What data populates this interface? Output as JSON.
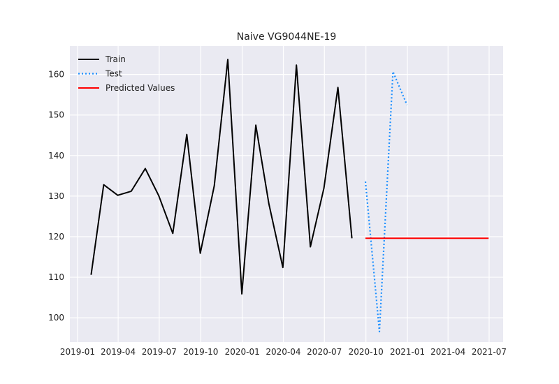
{
  "chart_data": {
    "type": "line",
    "title": "Naive VG9044NE-19",
    "xlabel": "",
    "ylabel": "",
    "x_axis_type": "date",
    "xlim": [
      "2018-12-15",
      "2021-08-01"
    ],
    "ylim": [
      94,
      167
    ],
    "grid": true,
    "legend_position": "top-left",
    "x_ticks": [
      {
        "date": "2019-01-01",
        "label": "2019-01"
      },
      {
        "date": "2019-04-01",
        "label": "2019-04"
      },
      {
        "date": "2019-07-01",
        "label": "2019-07"
      },
      {
        "date": "2019-10-01",
        "label": "2019-10"
      },
      {
        "date": "2020-01-01",
        "label": "2020-01"
      },
      {
        "date": "2020-04-01",
        "label": "2020-04"
      },
      {
        "date": "2020-07-01",
        "label": "2020-07"
      },
      {
        "date": "2020-10-01",
        "label": "2020-10"
      },
      {
        "date": "2021-01-01",
        "label": "2021-01"
      },
      {
        "date": "2021-04-01",
        "label": "2021-04"
      },
      {
        "date": "2021-07-01",
        "label": "2021-07"
      }
    ],
    "y_ticks": [
      100,
      110,
      120,
      130,
      140,
      150,
      160
    ],
    "series": [
      {
        "name": "Train",
        "color": "#000000",
        "style": "solid",
        "x": [
          "2019-01-31",
          "2019-02-28",
          "2019-03-31",
          "2019-04-30",
          "2019-05-31",
          "2019-06-30",
          "2019-07-31",
          "2019-08-31",
          "2019-09-30",
          "2019-10-31",
          "2019-11-30",
          "2019-12-31",
          "2020-01-31",
          "2020-02-29",
          "2020-03-31",
          "2020-04-30",
          "2020-05-31",
          "2020-06-30",
          "2020-07-31",
          "2020-08-31"
        ],
        "values": [
          110.6,
          132.8,
          130.2,
          131.2,
          136.8,
          130.1,
          120.8,
          145.2,
          115.9,
          132.6,
          163.7,
          105.9,
          147.5,
          128.1,
          112.4,
          162.3,
          117.5,
          132.0,
          156.8,
          119.6
        ]
      },
      {
        "name": "Test",
        "color": "#1E90FF",
        "style": "dotted",
        "x": [
          "2020-09-30",
          "2020-10-31",
          "2020-11-30",
          "2020-12-31"
        ],
        "values": [
          133.6,
          96.6,
          160.7,
          152.5
        ]
      },
      {
        "name": "Predicted Values",
        "color": "#FF0000",
        "style": "solid",
        "x": [
          "2020-09-30",
          "2021-06-30"
        ],
        "values": [
          119.6,
          119.6
        ]
      }
    ]
  }
}
